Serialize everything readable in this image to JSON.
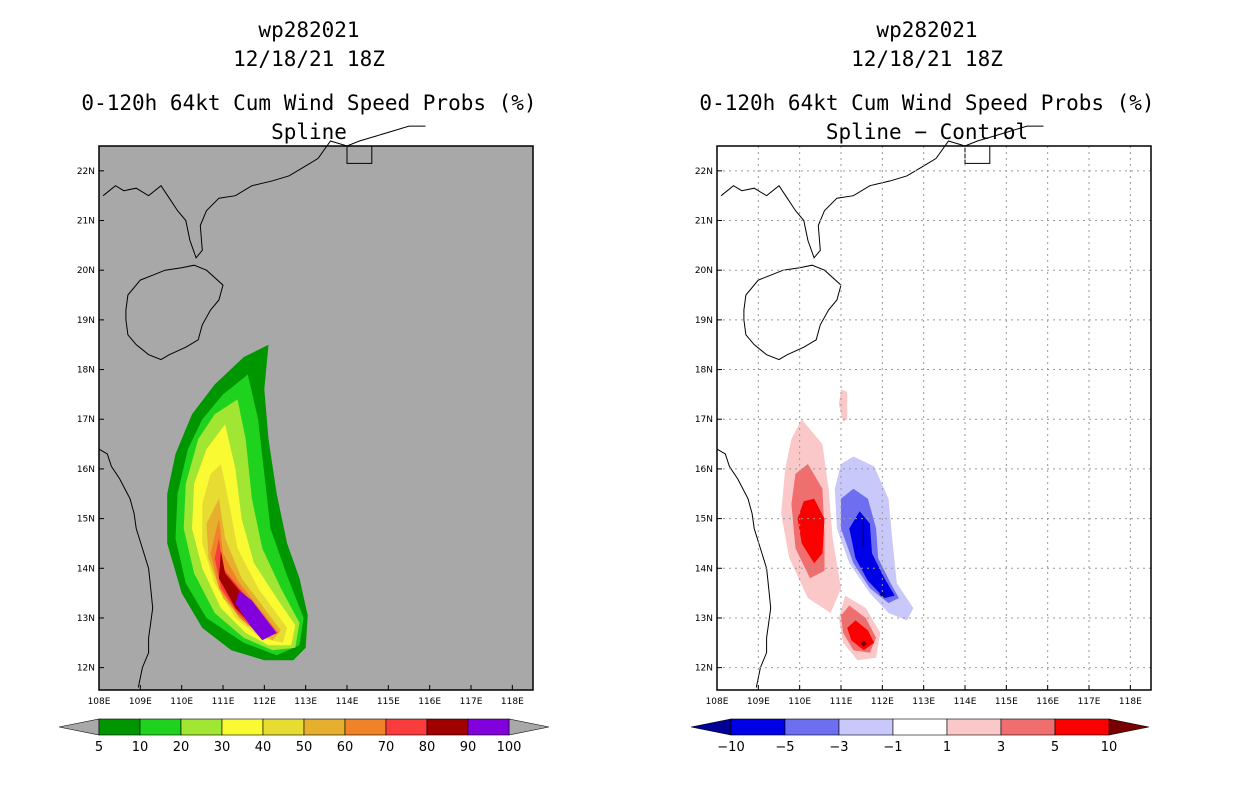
{
  "left": {
    "storm_id": "wp282021",
    "datetime": "12/18/21 18Z",
    "product": "0-120h 64kt Cum Wind Speed Probs (%)",
    "subtitle": "Spline"
  },
  "right": {
    "storm_id": "wp282021",
    "datetime": "12/18/21 18Z",
    "product": "0-120h 64kt Cum Wind Speed Probs (%)",
    "subtitle": "Spline − Control"
  },
  "chart_data": [
    {
      "type": "heatmap",
      "title": "0-120h 64kt Cum Wind Speed Probs (%) — Spline",
      "xlim": [
        108,
        118.5
      ],
      "ylim": [
        11.55,
        22.5
      ],
      "x_ticks": [
        108,
        109,
        110,
        111,
        112,
        113,
        114,
        115,
        116,
        117,
        118
      ],
      "x_tick_labels": [
        "108E",
        "109E",
        "110E",
        "111E",
        "112E",
        "113E",
        "114E",
        "115E",
        "116E",
        "117E",
        "118E"
      ],
      "y_ticks": [
        12,
        13,
        14,
        15,
        16,
        17,
        18,
        19,
        20,
        21,
        22
      ],
      "y_tick_labels": [
        "12N",
        "13N",
        "14N",
        "15N",
        "16N",
        "17N",
        "18N",
        "19N",
        "20N",
        "21N",
        "22N"
      ],
      "grid": false,
      "background": "#a8a8a8",
      "colorbar": {
        "labels": [
          "5",
          "10",
          "20",
          "30",
          "40",
          "50",
          "60",
          "70",
          "80",
          "90",
          "100"
        ],
        "colors": [
          "#009600",
          "#1ed21e",
          "#a0e632",
          "#fafa32",
          "#e6dc32",
          "#e6af2d",
          "#f08228",
          "#fa3c3c",
          "#a00000",
          "#8200dc"
        ],
        "extend_colors": [
          "#a8a8a8",
          "#a8a8a8"
        ]
      },
      "contour_levels_shown": [
        5,
        10,
        20,
        30,
        40,
        50,
        60,
        70,
        80,
        90
      ],
      "peak_probability_region": {
        "lon": [
          111.5,
          112.5
        ],
        "lat": [
          12.5,
          13.5
        ],
        "value": "90-100"
      }
    },
    {
      "type": "heatmap",
      "title": "0-120h 64kt Cum Wind Speed Probs (%) — Spline − Control",
      "xlim": [
        108,
        118.5
      ],
      "ylim": [
        11.55,
        22.5
      ],
      "x_ticks": [
        108,
        109,
        110,
        111,
        112,
        113,
        114,
        115,
        116,
        117,
        118
      ],
      "x_tick_labels": [
        "108E",
        "109E",
        "110E",
        "111E",
        "112E",
        "113E",
        "114E",
        "115E",
        "116E",
        "117E",
        "118E"
      ],
      "y_ticks": [
        12,
        13,
        14,
        15,
        16,
        17,
        18,
        19,
        20,
        21,
        22
      ],
      "y_tick_labels": [
        "12N",
        "13N",
        "14N",
        "15N",
        "16N",
        "17N",
        "18N",
        "19N",
        "20N",
        "21N",
        "22N"
      ],
      "grid": true,
      "background": "#ffffff",
      "colorbar": {
        "labels": [
          "−10",
          "−5",
          "−3",
          "−1",
          "1",
          "3",
          "5",
          "10"
        ],
        "colors": [
          "#0000e6",
          "#6e6ef0",
          "#c8c8fa",
          "#ffffff",
          "#fac8c8",
          "#f06e6e",
          "#fa0000"
        ],
        "extend_colors": [
          "#000096",
          "#780000"
        ]
      },
      "negative_lobe": {
        "lon": [
          110.8,
          112.6
        ],
        "lat": [
          12.9,
          16.2
        ],
        "min_value": "< −10"
      },
      "positive_lobe": {
        "lon": [
          109.6,
          111.0
        ],
        "lat": [
          13.5,
          17.0
        ],
        "max_value": "5-10"
      },
      "positive_secondary": {
        "lon": [
          111.0,
          111.9
        ],
        "lat": [
          12.2,
          13.4
        ],
        "max_value": "> 10"
      }
    }
  ]
}
